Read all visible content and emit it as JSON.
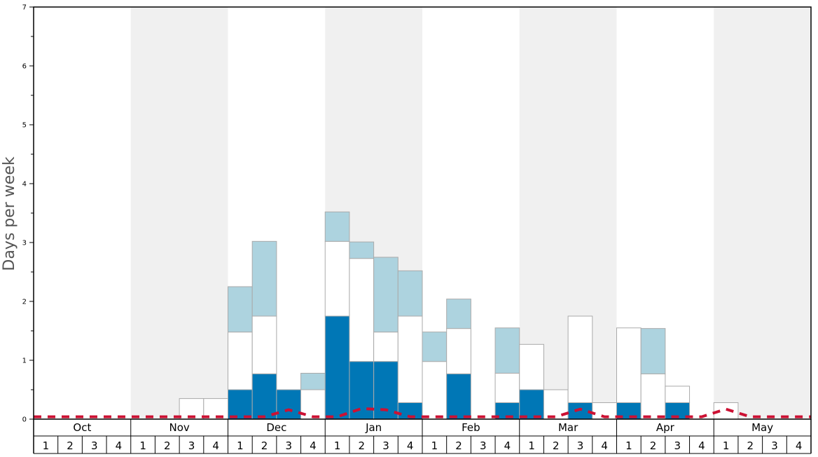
{
  "chart_data": {
    "type": "bar",
    "stacked": true,
    "ylabel": "Days per week",
    "ylim": [
      0,
      7
    ],
    "yticks": [
      "0",
      "1",
      "2",
      "3",
      "4",
      "5",
      "6",
      "7"
    ],
    "months": [
      "Oct",
      "Nov",
      "Dec",
      "Jan",
      "Feb",
      "Mar",
      "Apr",
      "May"
    ],
    "weeks": [
      "1",
      "2",
      "3",
      "4"
    ],
    "grid": false,
    "alternating_month_shading": true,
    "colors": {
      "dark": "#0077b6",
      "white": "#ffffff",
      "light": "#add3df",
      "shade": "#f0f0f0",
      "line": "#cc1133",
      "bar_border": "#aaaaaa"
    },
    "series": [
      {
        "key": "dark",
        "values": [
          0,
          0,
          0,
          0,
          0,
          0,
          0,
          0,
          0.5,
          0.77,
          0.5,
          0,
          1.75,
          0.98,
          0.98,
          0.28,
          0,
          0.77,
          0,
          0.28,
          0.5,
          0,
          0.28,
          0,
          0.28,
          0,
          0.28,
          0,
          0,
          0,
          0,
          0
        ]
      },
      {
        "key": "white",
        "values": [
          0,
          0,
          0,
          0,
          0,
          0,
          0.35,
          0.35,
          0.98,
          0.98,
          0,
          0.5,
          1.27,
          1.75,
          0.5,
          1.47,
          0.98,
          0.77,
          0,
          0.5,
          0.77,
          0.5,
          1.47,
          0.28,
          1.27,
          0.77,
          0.28,
          0,
          0.28,
          0,
          0,
          0
        ]
      },
      {
        "key": "light",
        "values": [
          0,
          0,
          0,
          0,
          0,
          0,
          0,
          0,
          0.77,
          1.27,
          0,
          0.28,
          0.5,
          0.28,
          1.27,
          0.77,
          0.5,
          0.5,
          0,
          0.77,
          0,
          0,
          0,
          0,
          0,
          0.77,
          0,
          0,
          0,
          0,
          0,
          0
        ]
      }
    ],
    "line": {
      "style": "dashed",
      "values": [
        0.04,
        0.04,
        0.04,
        0.04,
        0.04,
        0.04,
        0.04,
        0.04,
        0.04,
        0.04,
        0.16,
        0.04,
        0.04,
        0.18,
        0.16,
        0.04,
        0.04,
        0.04,
        0.04,
        0.04,
        0.04,
        0.04,
        0.17,
        0.04,
        0.04,
        0.04,
        0.04,
        0.04,
        0.17,
        0.04,
        0.04,
        0.04
      ]
    }
  }
}
